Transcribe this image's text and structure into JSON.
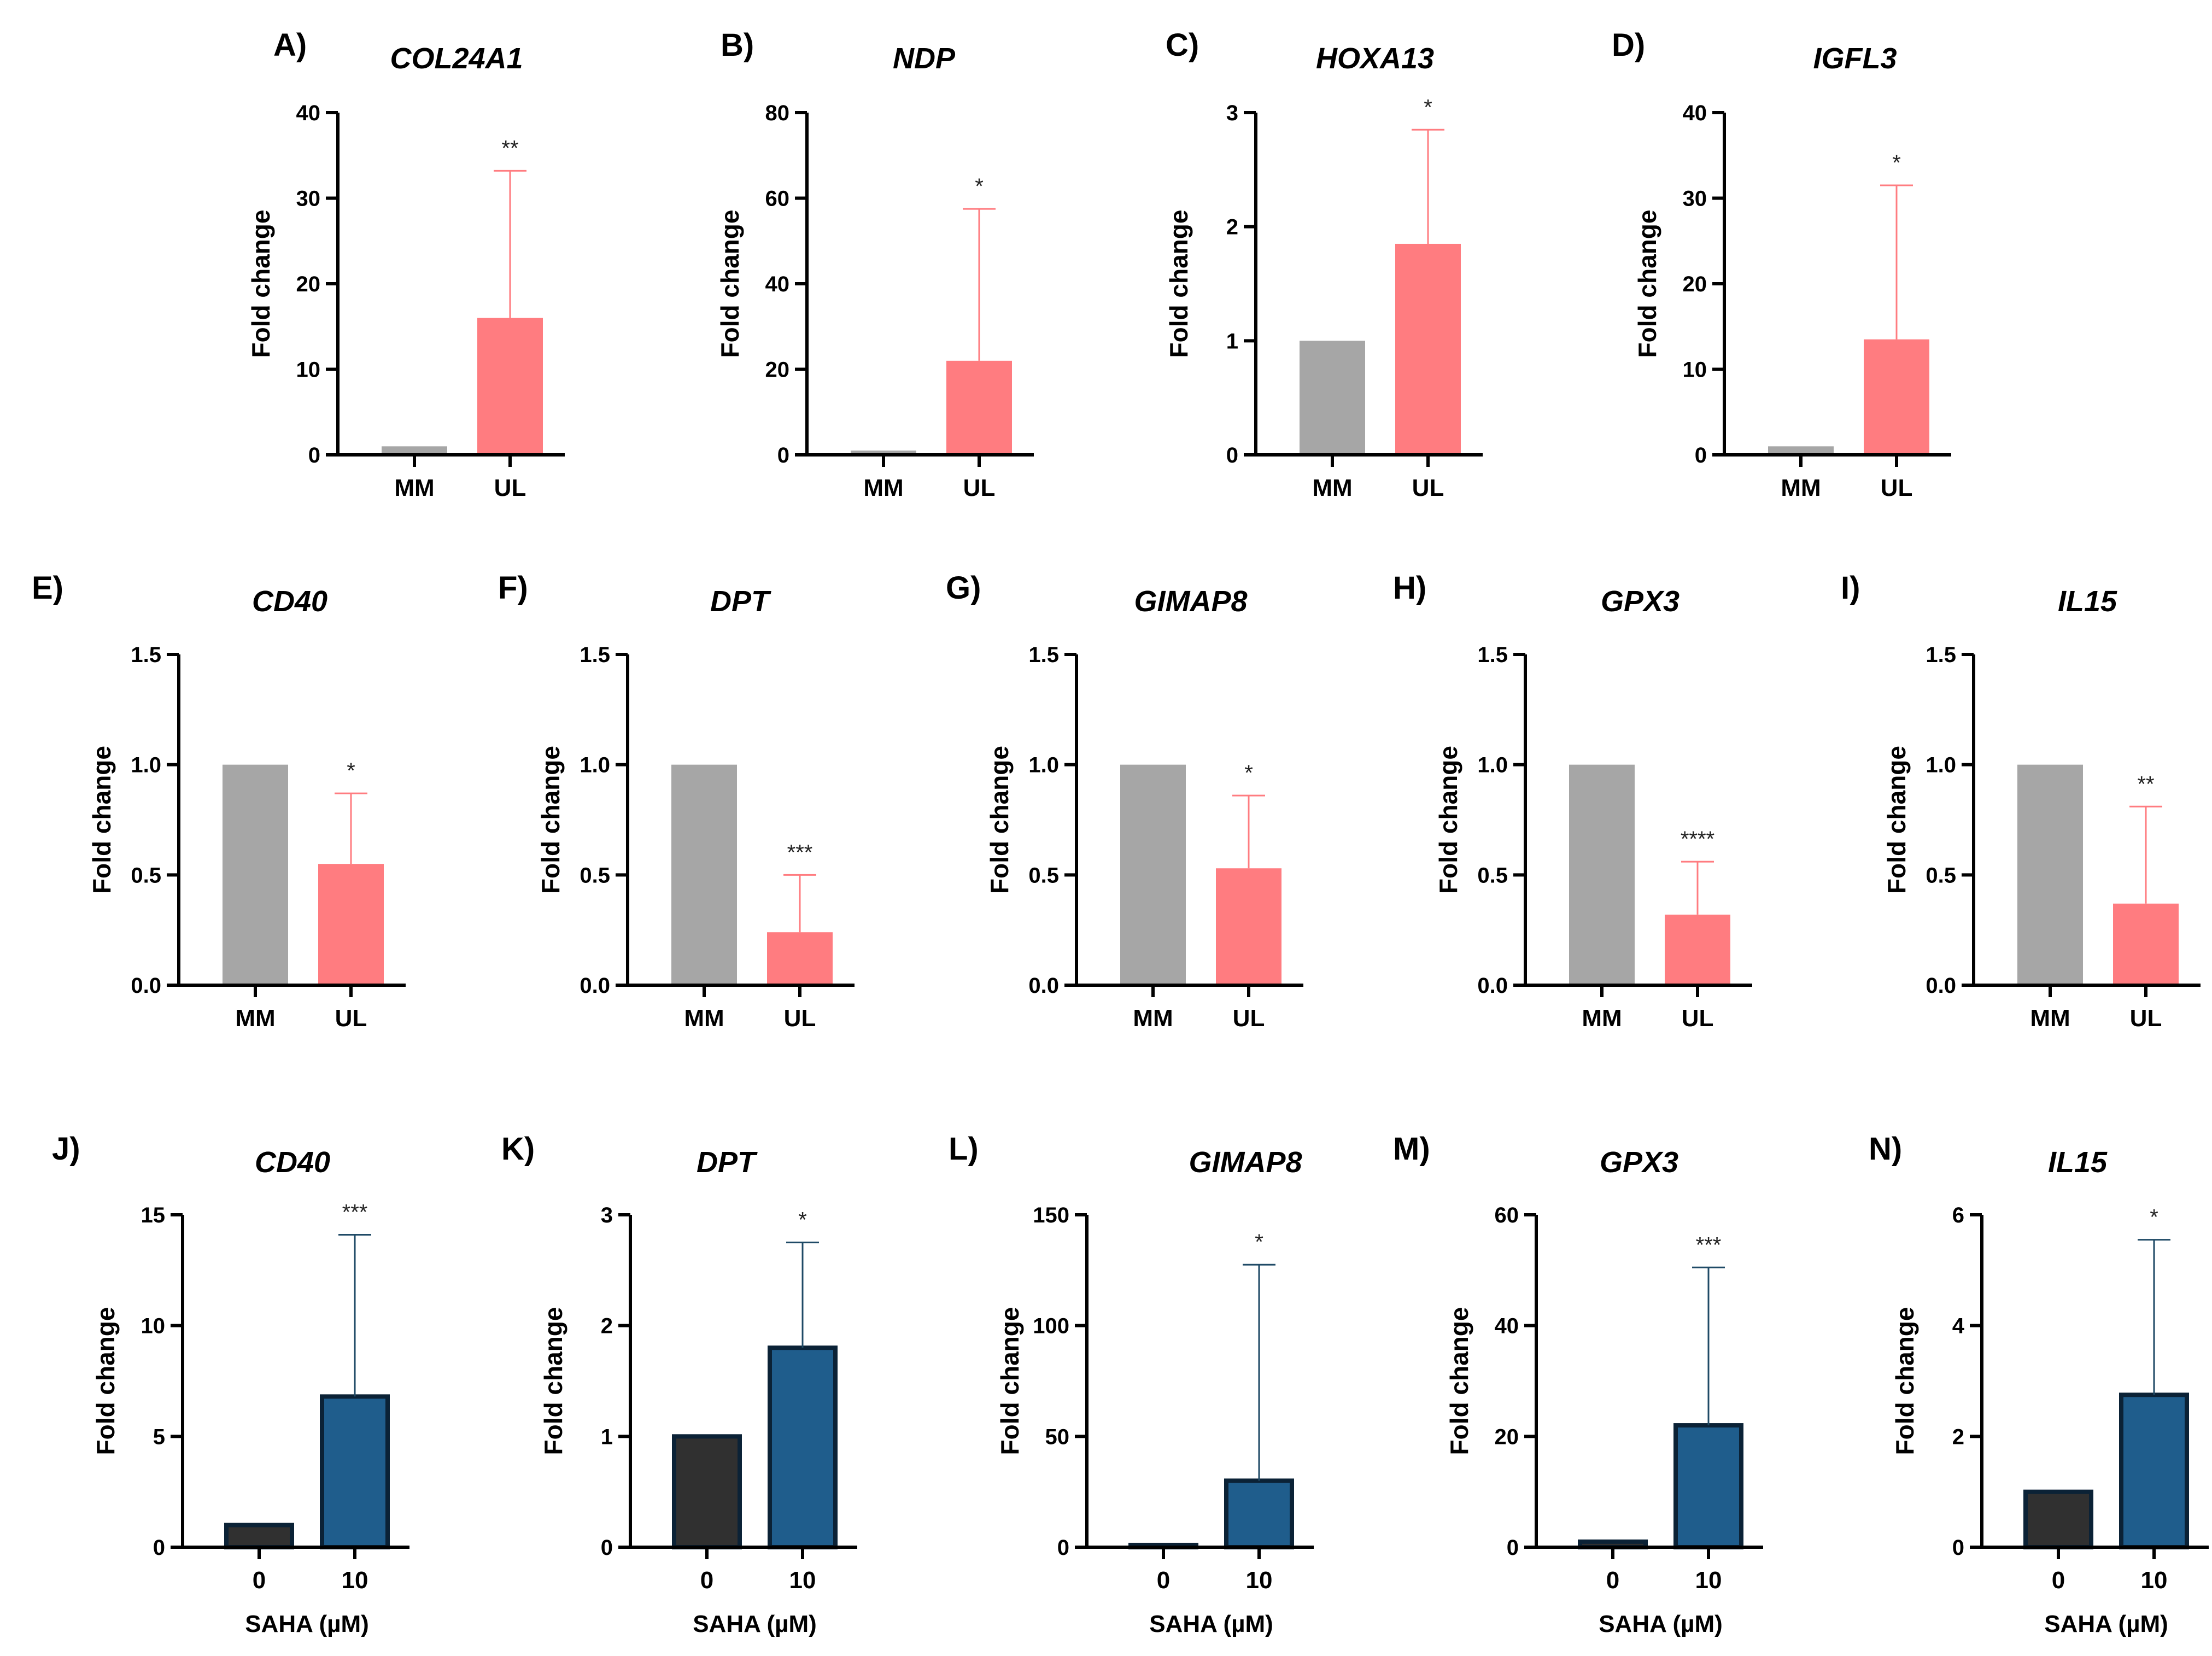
{
  "chart_data": [
    {
      "type": "bar",
      "letter": "A)",
      "title": "COL24A1",
      "ylabel": "Fold change",
      "xlabel": "",
      "categories": [
        "MM",
        "UL"
      ],
      "values": [
        1,
        16
      ],
      "errors": [
        0,
        17.2
      ],
      "significance": "**",
      "ylim": [
        0,
        40
      ],
      "yticks": [
        "0",
        "10",
        "20",
        "30",
        "40"
      ],
      "colors": [
        "#a6a6a6",
        "#ff7c80"
      ],
      "bar_stroke": "none",
      "err_color": "#ff7c80"
    },
    {
      "type": "bar",
      "letter": "B)",
      "title": "NDP",
      "ylabel": "Fold change",
      "xlabel": "",
      "categories": [
        "MM",
        "UL"
      ],
      "values": [
        1,
        22
      ],
      "errors": [
        0,
        35.5
      ],
      "significance": "*",
      "ylim": [
        0,
        80
      ],
      "yticks": [
        "0",
        "20",
        "40",
        "60",
        "80"
      ],
      "colors": [
        "#a6a6a6",
        "#ff7c80"
      ],
      "bar_stroke": "none",
      "err_color": "#ff7c80"
    },
    {
      "type": "bar",
      "letter": "C)",
      "title": "HOXA13",
      "ylabel": "Fold change",
      "xlabel": "",
      "categories": [
        "MM",
        "UL"
      ],
      "values": [
        1,
        1.85
      ],
      "errors": [
        0,
        1.0
      ],
      "significance": "*",
      "ylim": [
        0,
        3
      ],
      "yticks": [
        "0",
        "1",
        "2",
        "3"
      ],
      "colors": [
        "#a6a6a6",
        "#ff7c80"
      ],
      "bar_stroke": "none",
      "err_color": "#ff7c80"
    },
    {
      "type": "bar",
      "letter": "D)",
      "title": "IGFL3",
      "ylabel": "Fold change",
      "xlabel": "",
      "categories": [
        "MM",
        "UL"
      ],
      "values": [
        1,
        13.5
      ],
      "errors": [
        0,
        18
      ],
      "significance": "*",
      "ylim": [
        0,
        40
      ],
      "yticks": [
        "0",
        "10",
        "20",
        "30",
        "40"
      ],
      "colors": [
        "#a6a6a6",
        "#ff7c80"
      ],
      "bar_stroke": "none",
      "err_color": "#ff7c80"
    },
    {
      "type": "bar",
      "letter": "E)",
      "title": "CD40",
      "ylabel": "Fold change",
      "xlabel": "",
      "categories": [
        "MM",
        "UL"
      ],
      "values": [
        1.0,
        0.55
      ],
      "errors": [
        0,
        0.32
      ],
      "significance": "*",
      "ylim": [
        0,
        1.5
      ],
      "yticks": [
        "0.0",
        "0.5",
        "1.0",
        "1.5"
      ],
      "colors": [
        "#a6a6a6",
        "#ff7c80"
      ],
      "bar_stroke": "none",
      "err_color": "#ff7c80"
    },
    {
      "type": "bar",
      "letter": "F)",
      "title": "DPT",
      "ylabel": "Fold change",
      "xlabel": "",
      "categories": [
        "MM",
        "UL"
      ],
      "values": [
        1.0,
        0.24
      ],
      "errors": [
        0,
        0.26
      ],
      "significance": "***",
      "ylim": [
        0,
        1.5
      ],
      "yticks": [
        "0.0",
        "0.5",
        "1.0",
        "1.5"
      ],
      "colors": [
        "#a6a6a6",
        "#ff7c80"
      ],
      "bar_stroke": "none",
      "err_color": "#ff7c80"
    },
    {
      "type": "bar",
      "letter": "G)",
      "title": "GIMAP8",
      "ylabel": "Fold change",
      "xlabel": "",
      "categories": [
        "MM",
        "UL"
      ],
      "values": [
        1.0,
        0.53
      ],
      "errors": [
        0,
        0.33
      ],
      "significance": "*",
      "ylim": [
        0,
        1.5
      ],
      "yticks": [
        "0.0",
        "0.5",
        "1.0",
        "1.5"
      ],
      "colors": [
        "#a6a6a6",
        "#ff7c80"
      ],
      "bar_stroke": "none",
      "err_color": "#ff7c80"
    },
    {
      "type": "bar",
      "letter": "H)",
      "title": "GPX3",
      "ylabel": "Fold change",
      "xlabel": "",
      "categories": [
        "MM",
        "UL"
      ],
      "values": [
        1.0,
        0.32
      ],
      "errors": [
        0,
        0.24
      ],
      "significance": "****",
      "ylim": [
        0,
        1.5
      ],
      "yticks": [
        "0.0",
        "0.5",
        "1.0",
        "1.5"
      ],
      "colors": [
        "#a6a6a6",
        "#ff7c80"
      ],
      "bar_stroke": "none",
      "err_color": "#ff7c80"
    },
    {
      "type": "bar",
      "letter": "I)",
      "title": "IL15",
      "ylabel": "Fold change",
      "xlabel": "",
      "categories": [
        "MM",
        "UL"
      ],
      "values": [
        1.0,
        0.37
      ],
      "errors": [
        0,
        0.44
      ],
      "significance": "**",
      "ylim": [
        0,
        1.5
      ],
      "yticks": [
        "0.0",
        "0.5",
        "1.0",
        "1.5"
      ],
      "colors": [
        "#a6a6a6",
        "#ff7c80"
      ],
      "bar_stroke": "none",
      "err_color": "#ff7c80"
    },
    {
      "type": "bar",
      "letter": "J)",
      "title": "CD40",
      "ylabel": "Fold change",
      "xlabel": "SAHA (µM)",
      "categories": [
        "0",
        "10"
      ],
      "values": [
        1,
        6.8
      ],
      "errors": [
        0,
        7.3
      ],
      "significance": "***",
      "ylim": [
        0,
        15
      ],
      "yticks": [
        "0",
        "5",
        "10",
        "15"
      ],
      "colors": [
        "#303030",
        "#1f5d8c"
      ],
      "bar_stroke": "#0b2236",
      "err_color": "#1f4a66"
    },
    {
      "type": "bar",
      "letter": "K)",
      "title": "DPT",
      "ylabel": "Fold change",
      "xlabel": "SAHA (µM)",
      "categories": [
        "0",
        "10"
      ],
      "values": [
        1,
        1.8
      ],
      "errors": [
        0,
        0.95
      ],
      "significance": "*",
      "ylim": [
        0,
        3
      ],
      "yticks": [
        "0",
        "1",
        "2",
        "3"
      ],
      "colors": [
        "#303030",
        "#1f5d8c"
      ],
      "bar_stroke": "#0b2236",
      "err_color": "#1f4a66"
    },
    {
      "type": "bar",
      "letter": "L)",
      "title": "GIMAP8",
      "ylabel": "Fold change",
      "xlabel": "SAHA (µM)",
      "categories": [
        "0",
        "10"
      ],
      "values": [
        1,
        30
      ],
      "errors": [
        0,
        97.5
      ],
      "significance": "*",
      "ylim": [
        0,
        150
      ],
      "yticks": [
        "0",
        "50",
        "100",
        "150"
      ],
      "colors": [
        "#303030",
        "#1f5d8c"
      ],
      "bar_stroke": "#0b2236",
      "err_color": "#1f4a66"
    },
    {
      "type": "bar",
      "letter": "M)",
      "title": "GPX3",
      "ylabel": "Fold change",
      "xlabel": "SAHA (µM)",
      "categories": [
        "0",
        "10"
      ],
      "values": [
        1,
        22
      ],
      "errors": [
        0,
        28.5
      ],
      "significance": "***",
      "ylim": [
        0,
        60
      ],
      "yticks": [
        "0",
        "20",
        "40",
        "60"
      ],
      "colors": [
        "#303030",
        "#1f5d8c"
      ],
      "bar_stroke": "#0b2236",
      "err_color": "#1f4a66"
    },
    {
      "type": "bar",
      "letter": "N)",
      "title": "IL15",
      "ylabel": "Fold change",
      "xlabel": "SAHA (µM)",
      "categories": [
        "0",
        "10"
      ],
      "values": [
        1,
        2.75
      ],
      "errors": [
        0,
        2.8
      ],
      "significance": "*",
      "ylim": [
        0,
        6
      ],
      "yticks": [
        "0",
        "2",
        "4",
        "6"
      ],
      "colors": [
        "#303030",
        "#1f5d8c"
      ],
      "bar_stroke": "#0b2236",
      "err_color": "#1f4a66"
    }
  ]
}
